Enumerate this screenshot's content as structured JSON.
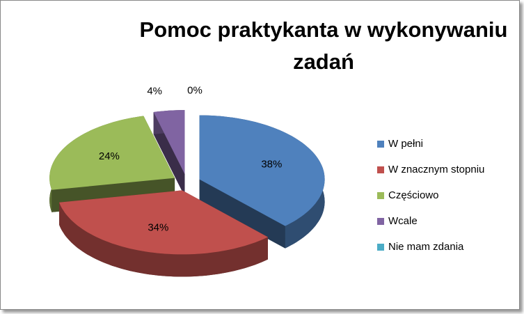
{
  "chart_data": {
    "type": "pie3d",
    "title": "Pomoc praktykanta w wykonywaniu zadań",
    "categories": [
      "W pełni",
      "W znacznym stopniu",
      "Częściowo",
      "Wcale",
      "Nie mam zdania"
    ],
    "values": [
      38,
      34,
      24,
      4,
      0
    ],
    "value_labels": [
      "38%",
      "34%",
      "24%",
      "4%",
      "0%"
    ],
    "colors": [
      "#4f81bd",
      "#c0504d",
      "#9bbb59",
      "#8064a2",
      "#4bacc6"
    ],
    "legend": "right"
  }
}
